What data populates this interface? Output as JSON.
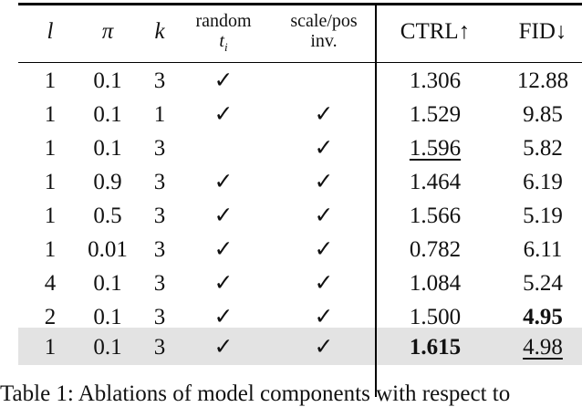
{
  "table": {
    "headers": {
      "l": "l",
      "pi": "π",
      "k": "k",
      "random_line1": "random",
      "random_line2": "t",
      "random_sub": "i",
      "scale_line1": "scale/pos",
      "scale_line2": "inv.",
      "ctrl": "CTRL↑",
      "fid": "FID↓"
    },
    "rows": [
      {
        "l": "1",
        "pi": "0.1",
        "k": "3",
        "random": "✓",
        "scale": "",
        "ctrl": "1.306",
        "fid": "12.88"
      },
      {
        "l": "1",
        "pi": "0.1",
        "k": "1",
        "random": "✓",
        "scale": "✓",
        "ctrl": "1.529",
        "fid": "9.85"
      },
      {
        "l": "1",
        "pi": "0.1",
        "k": "3",
        "random": "",
        "scale": "✓",
        "ctrl": "1.596",
        "fid": "5.82",
        "ctrl_style": "underline"
      },
      {
        "l": "1",
        "pi": "0.9",
        "k": "3",
        "random": "✓",
        "scale": "✓",
        "ctrl": "1.464",
        "fid": "6.19"
      },
      {
        "l": "1",
        "pi": "0.5",
        "k": "3",
        "random": "✓",
        "scale": "✓",
        "ctrl": "1.566",
        "fid": "5.19"
      },
      {
        "l": "1",
        "pi": "0.01",
        "k": "3",
        "random": "✓",
        "scale": "✓",
        "ctrl": "0.782",
        "fid": "6.11"
      },
      {
        "l": "4",
        "pi": "0.1",
        "k": "3",
        "random": "✓",
        "scale": "✓",
        "ctrl": "1.084",
        "fid": "5.24"
      },
      {
        "l": "2",
        "pi": "0.1",
        "k": "3",
        "random": "✓",
        "scale": "✓",
        "ctrl": "1.500",
        "fid": "4.95",
        "fid_style": "bold"
      },
      {
        "l": "1",
        "pi": "0.1",
        "k": "3",
        "random": "✓",
        "scale": "✓",
        "ctrl": "1.615",
        "fid": "4.98",
        "ctrl_style": "bold",
        "fid_style": "underline",
        "highlighted": true
      }
    ],
    "highlight_color": "#e3e3e3"
  },
  "caption": "Table 1: Ablations of model components with respect to"
}
